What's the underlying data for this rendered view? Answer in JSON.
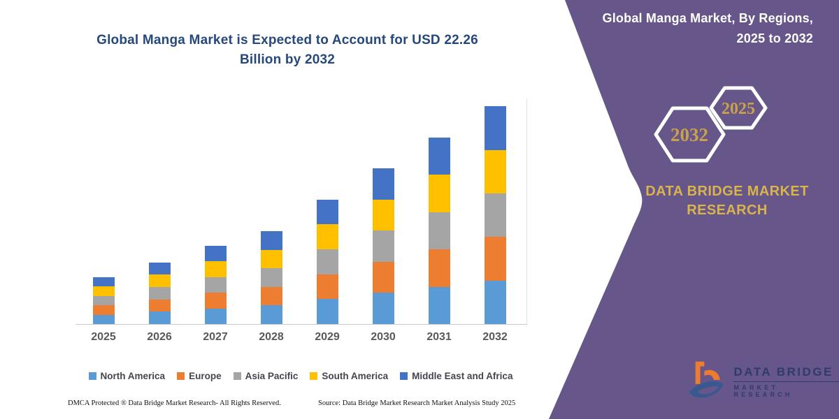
{
  "chart": {
    "title_lines": [
      "Global Manga Market is Expected to Account for USD 22.26",
      "Billion by 2032"
    ],
    "title_color": "#26497C"
  },
  "chart_data": {
    "type": "bar",
    "stacked": true,
    "title": "Global Manga Market is Expected to Account for USD 22.26 Billion by 2032",
    "unit": "USD Billion",
    "categories": [
      "2025",
      "2026",
      "2027",
      "2028",
      "2029",
      "2030",
      "2031",
      "2032"
    ],
    "series": [
      {
        "name": "North America",
        "color": "#5B9BD5",
        "values": [
          0.96,
          1.26,
          1.6,
          1.9,
          2.55,
          3.18,
          3.82,
          4.45
        ]
      },
      {
        "name": "Europe",
        "color": "#ED7D31",
        "values": [
          0.96,
          1.26,
          1.6,
          1.9,
          2.55,
          3.18,
          3.82,
          4.45
        ]
      },
      {
        "name": "Asia Pacific",
        "color": "#A5A5A5",
        "values": [
          0.96,
          1.26,
          1.6,
          1.9,
          2.55,
          3.18,
          3.82,
          4.45
        ]
      },
      {
        "name": "South America",
        "color": "#FFC000",
        "values": [
          0.96,
          1.26,
          1.6,
          1.9,
          2.55,
          3.18,
          3.82,
          4.45
        ]
      },
      {
        "name": "Middle East and Africa",
        "color": "#4472C4",
        "values": [
          0.96,
          1.26,
          1.6,
          1.9,
          2.55,
          3.18,
          3.82,
          4.46
        ]
      }
    ],
    "totals": [
      4.8,
      6.3,
      8.0,
      9.5,
      12.75,
      15.9,
      19.1,
      22.26
    ],
    "ylim": [
      0,
      24
    ],
    "grid": false,
    "y_axis_visible": false,
    "legend_position": "bottom"
  },
  "footer": {
    "dmca": "DMCA Protected ® Data Bridge Market Research-  All Rights Reserved.",
    "source": "Source: Data Bridge Market Research  Market Analysis Study 2025"
  },
  "panel": {
    "background_color": "#665689",
    "title_lines": [
      "Global Manga Market, By Regions,",
      "2025 to 2032"
    ],
    "hexagons": [
      {
        "label": "2032"
      },
      {
        "label": "2025"
      }
    ],
    "brand_lines": [
      "DATA BRIDGE MARKET",
      "RESEARCH"
    ],
    "brand_color": "#D9B44D"
  },
  "logo": {
    "name": "DATA BRIDGE",
    "subtitle": "MARKET RESEARCH"
  }
}
